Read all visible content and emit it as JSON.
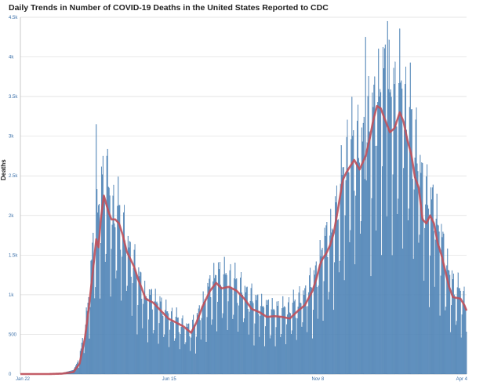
{
  "title": "Daily Trends in Number of COVID-19 Deaths in the United States Reported to CDC",
  "colors": {
    "bar": "#5b8fbf",
    "bar_stroke": "#4477aa",
    "line": "#c0505a",
    "grid": "#dddddd",
    "tick_text": "#3a6fa8"
  },
  "chart_data": {
    "type": "bar",
    "title": "Daily Trends in Number of COVID-19 Deaths in the United States Reported to CDC",
    "xlabel": "",
    "ylabel": "Deaths",
    "ylim": [
      0,
      4500
    ],
    "yticks": [
      {
        "value": 0,
        "label": "0"
      },
      {
        "value": 500,
        "label": "500"
      },
      {
        "value": 1000,
        "label": "1k"
      },
      {
        "value": 1500,
        "label": "1.5k"
      },
      {
        "value": 2000,
        "label": "2k"
      },
      {
        "value": 2500,
        "label": "2.5k"
      },
      {
        "value": 3000,
        "label": "3k"
      },
      {
        "value": 3500,
        "label": "3.5k"
      },
      {
        "value": 4000,
        "label": "4k"
      },
      {
        "value": 4500,
        "label": "4.5k"
      }
    ],
    "xticks": [
      {
        "index": 0,
        "label": "Jan 22"
      },
      {
        "index": 196,
        "label": "Jun 15"
      },
      {
        "index": 392,
        "label": "Nov 8"
      },
      {
        "index": 588,
        "label": "Apr 4"
      }
    ],
    "grid": true,
    "legend": "none",
    "n_days": 589,
    "series": [
      {
        "kind": "bar",
        "daily_knots": [
          [
            0,
            0
          ],
          [
            38,
            0
          ],
          [
            55,
            10
          ],
          [
            70,
            50
          ],
          [
            78,
            200
          ],
          [
            85,
            500
          ],
          [
            90,
            900
          ],
          [
            95,
            1350
          ],
          [
            100,
            1750
          ],
          [
            105,
            2000
          ],
          [
            108,
            2150
          ],
          [
            111,
            2300
          ],
          [
            115,
            2150
          ],
          [
            120,
            1900
          ],
          [
            125,
            1850
          ],
          [
            130,
            1850
          ],
          [
            135,
            1700
          ],
          [
            140,
            1550
          ],
          [
            148,
            1300
          ],
          [
            155,
            1150
          ],
          [
            165,
            900
          ],
          [
            175,
            850
          ],
          [
            185,
            780
          ],
          [
            195,
            680
          ],
          [
            205,
            630
          ],
          [
            215,
            560
          ],
          [
            225,
            520
          ],
          [
            232,
            620
          ],
          [
            240,
            800
          ],
          [
            250,
            1000
          ],
          [
            258,
            1130
          ],
          [
            265,
            1130
          ],
          [
            275,
            1100
          ],
          [
            285,
            1030
          ],
          [
            295,
            960
          ],
          [
            305,
            860
          ],
          [
            315,
            810
          ],
          [
            325,
            760
          ],
          [
            335,
            730
          ],
          [
            345,
            740
          ],
          [
            355,
            760
          ],
          [
            365,
            820
          ],
          [
            375,
            920
          ],
          [
            385,
            1050
          ],
          [
            393,
            1230
          ],
          [
            398,
            1480
          ],
          [
            405,
            1550
          ],
          [
            412,
            1650
          ],
          [
            420,
            2050
          ],
          [
            430,
            2500
          ],
          [
            440,
            2640
          ],
          [
            447,
            2600
          ],
          [
            455,
            2750
          ],
          [
            462,
            2900
          ],
          [
            470,
            3180
          ],
          [
            478,
            3380
          ],
          [
            485,
            3280
          ],
          [
            492,
            3100
          ],
          [
            500,
            3300
          ],
          [
            507,
            3060
          ],
          [
            515,
            2900
          ],
          [
            525,
            2450
          ],
          [
            535,
            2000
          ],
          [
            545,
            1950
          ],
          [
            555,
            1550
          ],
          [
            562,
            1250
          ],
          [
            570,
            1020
          ],
          [
            578,
            960
          ],
          [
            588,
            820
          ]
        ],
        "peaks": [
          {
            "index": 100,
            "value": 3150
          },
          {
            "index": 114,
            "value": 2750
          },
          {
            "index": 455,
            "value": 4250
          },
          {
            "index": 484,
            "value": 4450
          }
        ]
      },
      {
        "kind": "line",
        "knots": [
          [
            0,
            0
          ],
          [
            38,
            0
          ],
          [
            55,
            5
          ],
          [
            70,
            25
          ],
          [
            78,
            130
          ],
          [
            85,
            450
          ],
          [
            90,
            820
          ],
          [
            95,
            1250
          ],
          [
            100,
            1700
          ],
          [
            103,
            1600
          ],
          [
            106,
            1950
          ],
          [
            110,
            2250
          ],
          [
            113,
            2150
          ],
          [
            116,
            2050
          ],
          [
            120,
            1950
          ],
          [
            125,
            1950
          ],
          [
            130,
            1900
          ],
          [
            135,
            1750
          ],
          [
            140,
            1550
          ],
          [
            145,
            1450
          ],
          [
            150,
            1350
          ],
          [
            155,
            1200
          ],
          [
            160,
            1080
          ],
          [
            165,
            950
          ],
          [
            175,
            900
          ],
          [
            185,
            800
          ],
          [
            195,
            700
          ],
          [
            205,
            650
          ],
          [
            215,
            600
          ],
          [
            225,
            520
          ],
          [
            232,
            650
          ],
          [
            240,
            850
          ],
          [
            250,
            1050
          ],
          [
            258,
            1150
          ],
          [
            265,
            1080
          ],
          [
            275,
            1100
          ],
          [
            285,
            1050
          ],
          [
            295,
            950
          ],
          [
            305,
            820
          ],
          [
            315,
            780
          ],
          [
            325,
            720
          ],
          [
            335,
            730
          ],
          [
            345,
            720
          ],
          [
            355,
            700
          ],
          [
            365,
            790
          ],
          [
            375,
            870
          ],
          [
            385,
            1050
          ],
          [
            390,
            1200
          ],
          [
            395,
            1380
          ],
          [
            398,
            1450
          ],
          [
            403,
            1520
          ],
          [
            408,
            1620
          ],
          [
            413,
            1780
          ],
          [
            418,
            2050
          ],
          [
            425,
            2450
          ],
          [
            430,
            2550
          ],
          [
            440,
            2700
          ],
          [
            447,
            2580
          ],
          [
            455,
            2750
          ],
          [
            460,
            2950
          ],
          [
            465,
            3200
          ],
          [
            470,
            3380
          ],
          [
            475,
            3350
          ],
          [
            480,
            3220
          ],
          [
            487,
            3050
          ],
          [
            493,
            3100
          ],
          [
            500,
            3300
          ],
          [
            505,
            3180
          ],
          [
            510,
            2950
          ],
          [
            515,
            2780
          ],
          [
            520,
            2480
          ],
          [
            525,
            2350
          ],
          [
            530,
            1950
          ],
          [
            535,
            1900
          ],
          [
            540,
            2000
          ],
          [
            545,
            1900
          ],
          [
            550,
            1650
          ],
          [
            555,
            1500
          ],
          [
            560,
            1300
          ],
          [
            565,
            1100
          ],
          [
            570,
            970
          ],
          [
            575,
            960
          ],
          [
            580,
            950
          ],
          [
            585,
            870
          ],
          [
            588,
            800
          ]
        ]
      }
    ]
  }
}
